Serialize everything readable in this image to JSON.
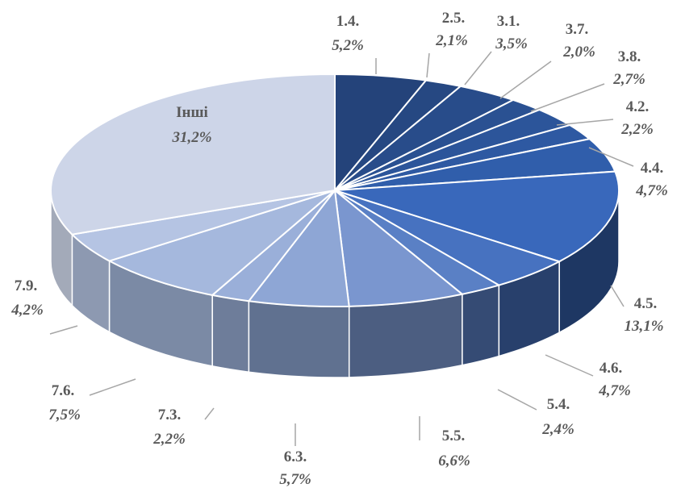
{
  "chart_data": {
    "type": "pie",
    "title": "",
    "legend": "none",
    "slices": [
      {
        "label": "1.4.",
        "value_label": "5,2%",
        "value": 5.2,
        "color": "#24437a"
      },
      {
        "label": "2.5.",
        "value_label": "2,1%",
        "value": 2.1,
        "color": "#264882"
      },
      {
        "label": "3.1.",
        "value_label": "3,5%",
        "value": 3.5,
        "color": "#284c8a"
      },
      {
        "label": "3.7.",
        "value_label": "2,0%",
        "value": 2.0,
        "color": "#2a5192"
      },
      {
        "label": "3.8.",
        "value_label": "2,7%",
        "value": 2.7,
        "color": "#2c559a"
      },
      {
        "label": "4.2.",
        "value_label": "2,2%",
        "value": 2.2,
        "color": "#2e59a2"
      },
      {
        "label": "4.4.",
        "value_label": "4,7%",
        "value": 4.7,
        "color": "#305eab"
      },
      {
        "label": "4.5.",
        "value_label": "13,1%",
        "value": 13.1,
        "color": "#3968bb"
      },
      {
        "label": "4.6.",
        "value_label": "4,7%",
        "value": 4.7,
        "color": "#4772c0"
      },
      {
        "label": "5.4.",
        "value_label": "2,4%",
        "value": 2.4,
        "color": "#5a80c5"
      },
      {
        "label": "5.5.",
        "value_label": "6,6%",
        "value": 6.6,
        "color": "#7a96cf"
      },
      {
        "label": "6.3.",
        "value_label": "5,7%",
        "value": 5.7,
        "color": "#8ea6d5"
      },
      {
        "label": "7.3.",
        "value_label": "2,2%",
        "value": 2.2,
        "color": "#9aafd9"
      },
      {
        "label": "7.6.",
        "value_label": "7,5%",
        "value": 7.5,
        "color": "#a5b8dd"
      },
      {
        "label": "7.9.",
        "value_label": "4,2%",
        "value": 4.2,
        "color": "#b5c4e3"
      },
      {
        "label": "Інші",
        "value_label": "31,2%",
        "value": 31.2,
        "color": "#cdd5e8"
      }
    ]
  }
}
